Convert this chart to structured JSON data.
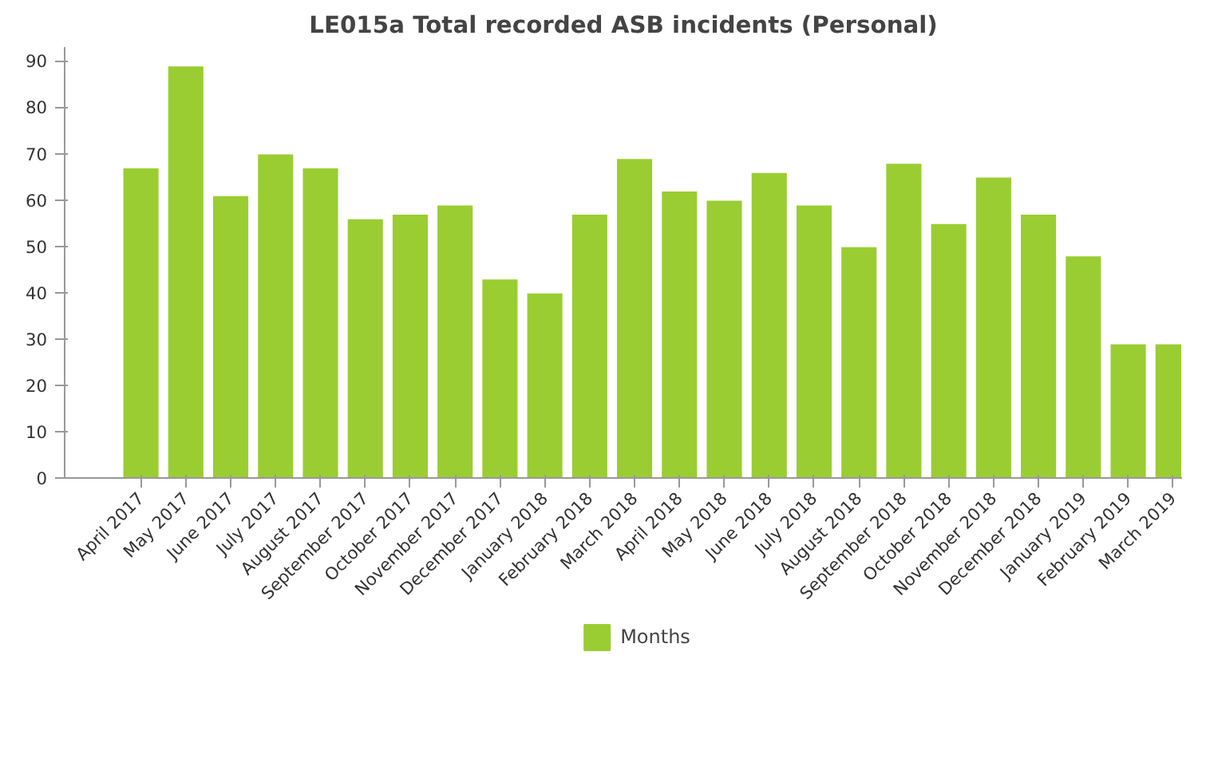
{
  "chart_data": {
    "type": "bar",
    "title": "LE015a Total recorded ASB incidents (Personal)",
    "categories": [
      "April 2017",
      "May 2017",
      "June 2017",
      "July 2017",
      "August 2017",
      "September 2017",
      "October 2017",
      "November 2017",
      "December 2017",
      "January 2018",
      "February 2018",
      "March 2018",
      "April 2018",
      "May 2018",
      "June 2018",
      "July 2018",
      "August 2018",
      "September 2018",
      "October 2018",
      "November 2018",
      "December 2018",
      "January 2019",
      "February 2019",
      "March 2019"
    ],
    "series": [
      {
        "name": "Months",
        "color": "#9acd32",
        "values": [
          67,
          89,
          61,
          70,
          67,
          56,
          57,
          59,
          43,
          40,
          57,
          69,
          62,
          60,
          66,
          59,
          50,
          68,
          55,
          65,
          57,
          48,
          29,
          29
        ]
      }
    ],
    "ylim": [
      0,
      93
    ],
    "yticks": [
      0,
      10,
      20,
      30,
      40,
      50,
      60,
      70,
      80,
      90
    ],
    "grid": false,
    "legend": "bottom"
  }
}
